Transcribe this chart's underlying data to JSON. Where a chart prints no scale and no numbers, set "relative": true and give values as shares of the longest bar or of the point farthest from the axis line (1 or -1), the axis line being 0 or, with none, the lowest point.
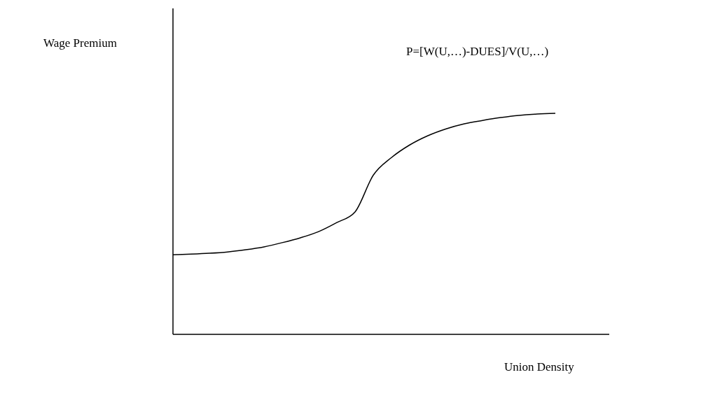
{
  "chart_data": {
    "type": "line",
    "relative": true,
    "xlabel": "Union Density",
    "annotations": [
      "Wage Premium",
      "P=[W(U,…)-DUES]/V(U,…)"
    ],
    "categories": [
      null,
      null,
      null,
      null,
      null,
      null,
      null,
      null,
      null,
      null,
      null,
      null,
      null,
      null,
      null,
      null,
      null,
      null,
      null,
      null,
      null,
      null
    ],
    "series": [
      {
        "color": "#000000",
        "values": [
          0.36,
          0.363,
          0.367,
          0.373,
          0.383,
          0.396,
          0.415,
          0.437,
          0.465,
          0.506,
          0.554,
          0.72,
          0.8,
          0.857,
          0.899,
          0.93,
          0.953,
          0.968,
          0.981,
          0.991,
          0.997,
          1.0
        ]
      }
    ],
    "grid": false,
    "legend": false,
    "marker": "none",
    "line_style": "solid"
  }
}
